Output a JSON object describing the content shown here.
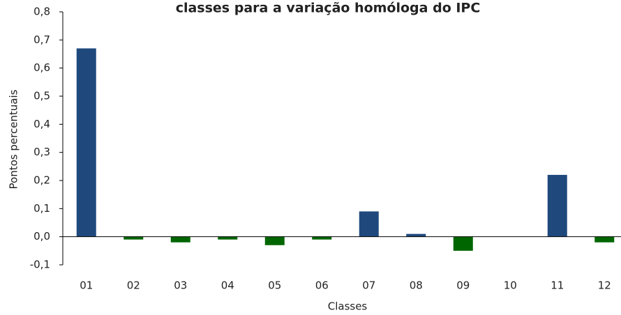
{
  "chart_data": {
    "type": "bar",
    "title": "classes para a variação homóloga do IPC",
    "xlabel": "Classes",
    "ylabel": "Pontos percentuais",
    "categories": [
      "01",
      "02",
      "03",
      "04",
      "05",
      "06",
      "07",
      "08",
      "09",
      "10",
      "11",
      "12"
    ],
    "values": [
      0.67,
      -0.01,
      -0.02,
      -0.01,
      -0.03,
      -0.01,
      0.09,
      0.01,
      -0.05,
      0,
      0.22,
      -0.02
    ],
    "colors": [
      "#1f497d",
      "#006600",
      "#006600",
      "#006600",
      "#006600",
      "#006600",
      "#1f497d",
      "#1f497d",
      "#006600",
      "#1f497d",
      "#1f497d",
      "#006600"
    ],
    "ylim": [
      -0.1,
      0.8
    ],
    "yticks": [
      {
        "value": -0.1,
        "label": "-0,1"
      },
      {
        "value": 0,
        "label": "0,0"
      },
      {
        "value": 0.1,
        "label": "0,1"
      },
      {
        "value": 0.2,
        "label": "0,2"
      },
      {
        "value": 0.3,
        "label": "0,3"
      },
      {
        "value": 0.4,
        "label": "0,4"
      },
      {
        "value": 0.5,
        "label": "0,5"
      },
      {
        "value": 0.6,
        "label": "0,6"
      },
      {
        "value": 0.7,
        "label": "0,7"
      },
      {
        "value": 0.8,
        "label": "0,8"
      }
    ],
    "grid": false
  }
}
